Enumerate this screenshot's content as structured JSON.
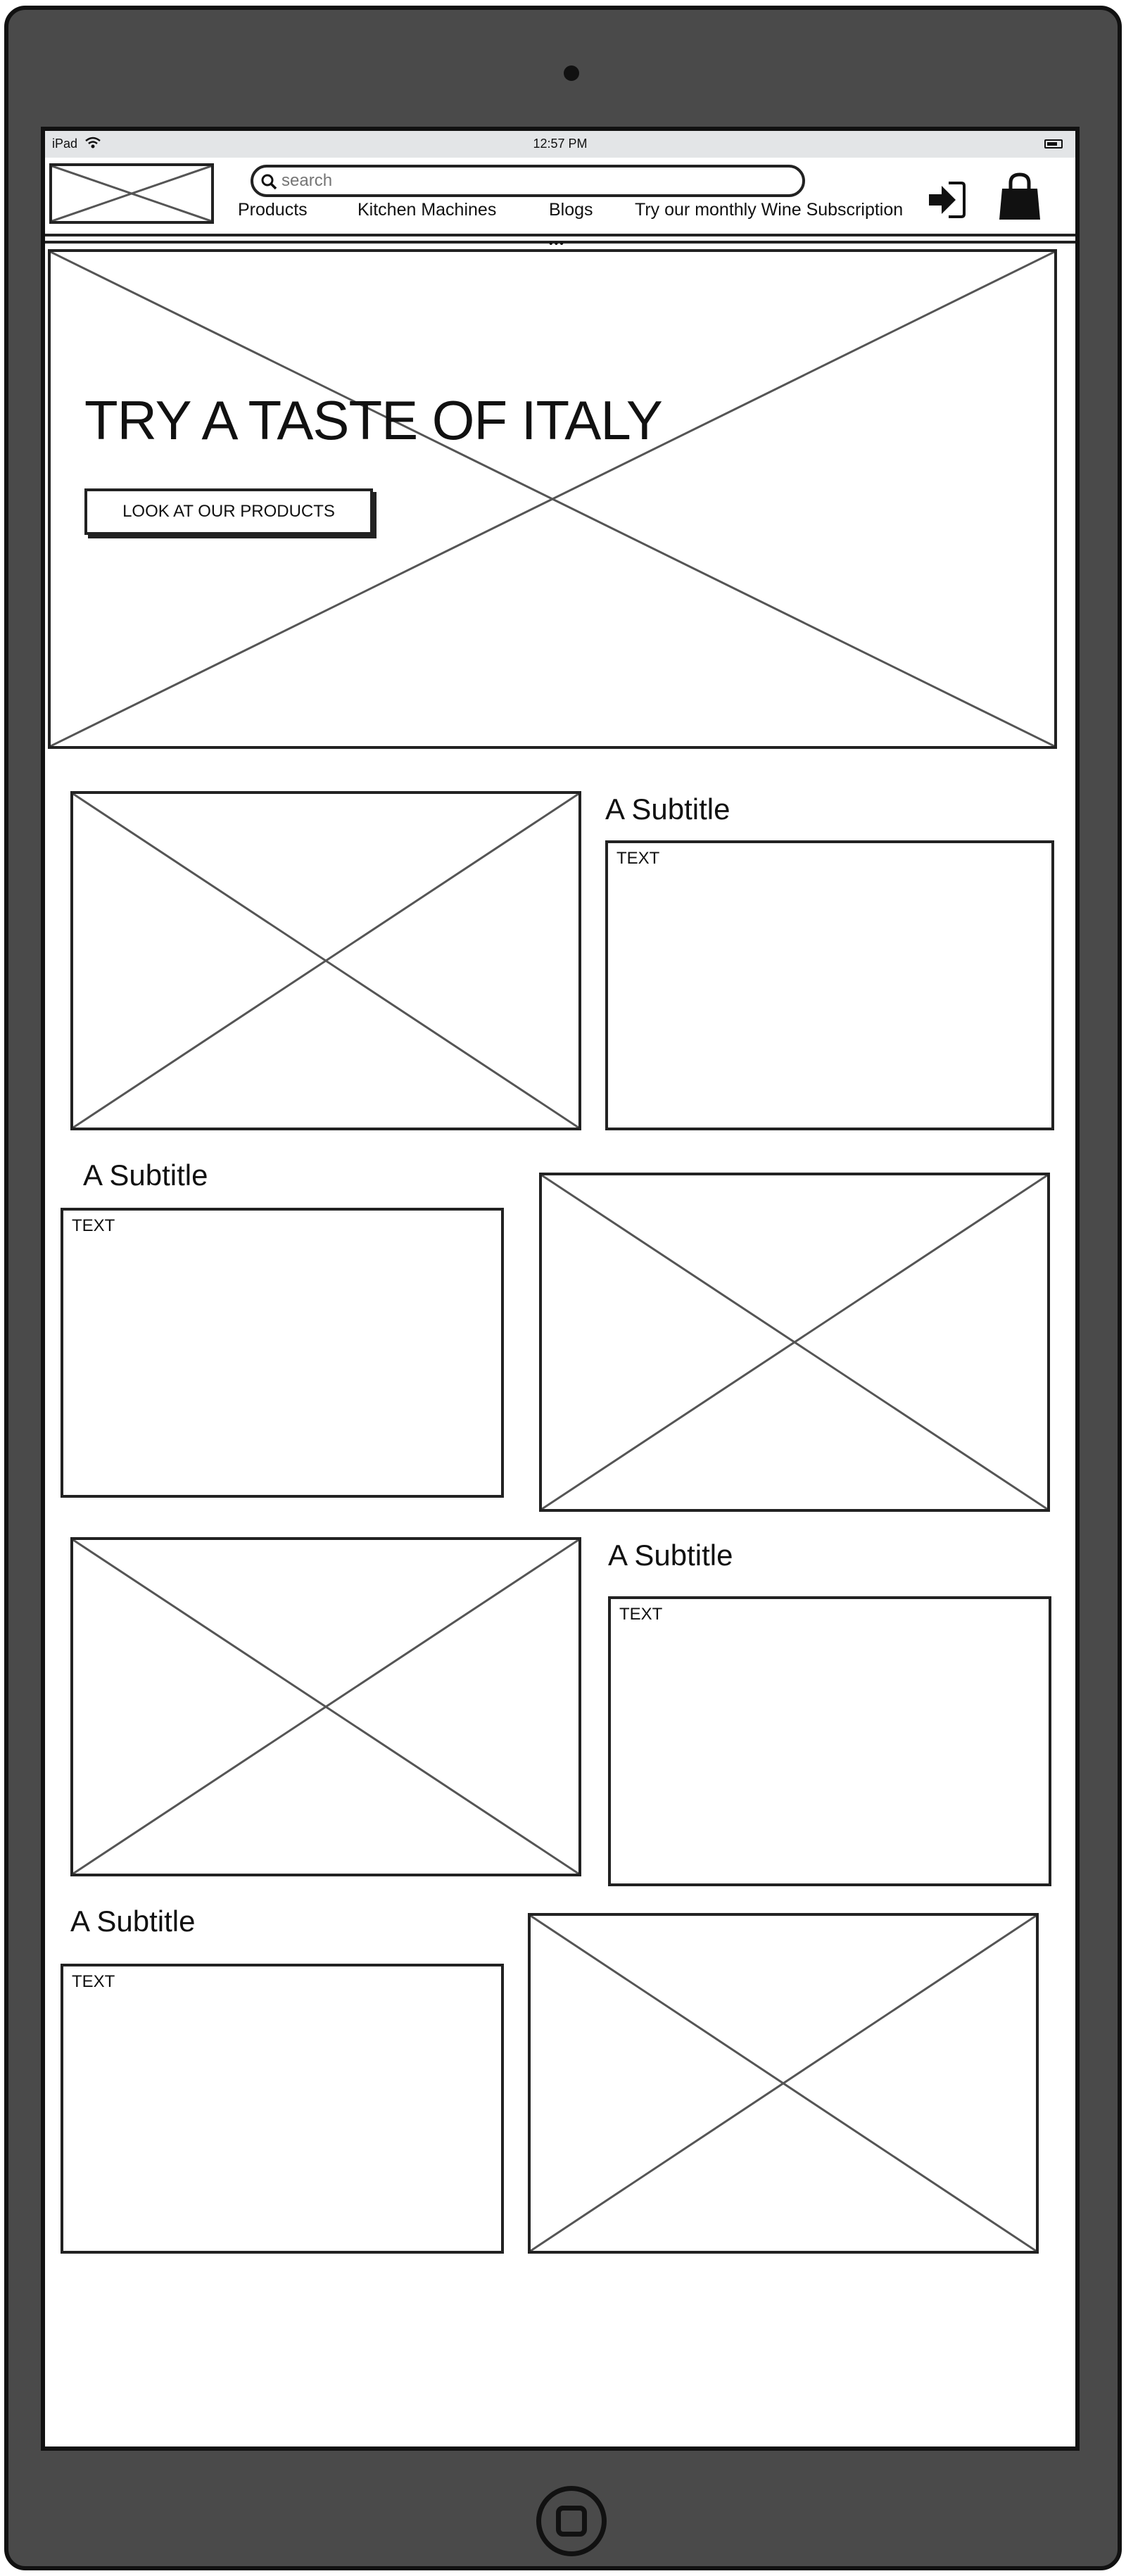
{
  "status_bar": {
    "device": "iPad",
    "time": "12:57 PM"
  },
  "header": {
    "search": {
      "placeholder": "search",
      "value": ""
    },
    "nav": [
      {
        "label": "Products"
      },
      {
        "label": "Kitchen Machines"
      },
      {
        "label": "Blogs"
      },
      {
        "label": "Try our monthly Wine Subscription"
      }
    ],
    "icons": {
      "login": "sign-in-icon",
      "cart": "shopping-bag-icon",
      "search": "search-icon"
    }
  },
  "hero": {
    "title": "TRY A TASTE OF ITALY",
    "button_label": "LOOK AT OUR PRODUCTS"
  },
  "sections": [
    {
      "subtitle": "A Subtitle",
      "text": "TEXT"
    },
    {
      "subtitle": "A Subtitle",
      "text": "TEXT"
    },
    {
      "subtitle": "A Subtitle",
      "text": "TEXT"
    },
    {
      "subtitle": "A Subtitle",
      "text": "TEXT"
    }
  ]
}
